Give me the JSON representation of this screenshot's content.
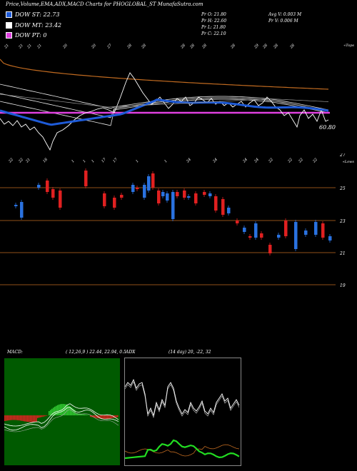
{
  "header": {
    "title": "Price,Volume,EMA,ADX,MACD Charts for PHOGLOBAL_ST MunafaSutra.com"
  },
  "legend": [
    {
      "label": "DOW ST: 22.73",
      "color": "#1e5bd8"
    },
    {
      "label": "DOW MT: 23.42",
      "color": "#ffffff"
    },
    {
      "label": "DOW PT: 0",
      "color": "#e040e0"
    }
  ],
  "stats": {
    "pr_open": "Pr   O: 21.80",
    "pr_high": "Pr   H: 22.60",
    "pr_low": "Pr   L: 21.80",
    "pr_close": "Pr   C: 22.10",
    "avg_vol": "Avg V: 0.003  M",
    "pr_vol": "Pr   V: 0.006  M"
  },
  "top_chart": {
    "corner_label": "«Tops",
    "price_label": "60.80",
    "colors": {
      "ema_short": "#1e5bd8",
      "ema_long": "#c06a20",
      "pt_line": "#e040e0",
      "price": "#ffffff"
    },
    "date_labels": [
      "21",
      "21",
      "21",
      "21",
      "20",
      "20",
      "27",
      "28",
      "28",
      "28",
      "28",
      "28",
      "28",
      "29",
      "28",
      "28",
      "28"
    ]
  },
  "middle_chart": {
    "corner_label": "«Lows",
    "axis_labels": [
      "27",
      "25",
      "23",
      "21",
      "19"
    ],
    "date_labels": [
      "22",
      "22",
      "21",
      "18",
      "1",
      "1",
      "1",
      "17",
      "17",
      "1",
      "1",
      "24",
      "24",
      "24",
      "24",
      "22",
      "22",
      "22",
      "22"
    ],
    "colors": {
      "up": "#2a72e0",
      "down": "#e02020",
      "grid": "#c06a20"
    }
  },
  "macd": {
    "title": "MACD:",
    "params": "( 12,26,9 ) 22.44,  22.94,  0.5",
    "colors": {
      "bg": "#005a00",
      "pos": "#33cc33",
      "neg": "#e02020"
    }
  },
  "adx": {
    "title": "ADX",
    "params": "(14  day) 20,  -22,  32",
    "colors": {
      "adx": "#ffffff",
      "plus": "#22dd22",
      "minus": "#c06a20"
    }
  }
}
